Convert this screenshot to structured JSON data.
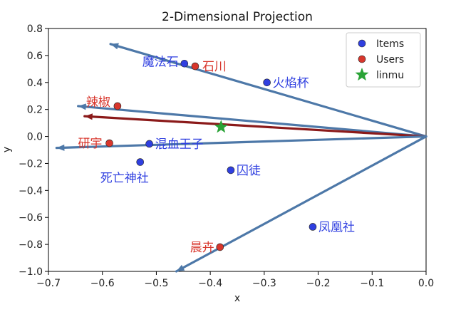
{
  "chart_data": {
    "type": "scatter",
    "title": "2-Dimensional Projection",
    "xlabel": "x",
    "ylabel": "y",
    "xlim": [
      -0.7,
      0.0
    ],
    "ylim": [
      -1.0,
      0.8
    ],
    "xticks": [
      "−0.7",
      "−0.6",
      "−0.5",
      "−0.4",
      "−0.3",
      "−0.2",
      "−0.1",
      "0.0"
    ],
    "yticks": [
      "−1.0",
      "−0.8",
      "−0.6",
      "−0.4",
      "−0.2",
      "0.0",
      "0.2",
      "0.4",
      "0.6",
      "0.8"
    ],
    "legend_position": "top-right",
    "colors": {
      "items": "#2f3fe0",
      "users": "#d8362c",
      "target": "#2aa336",
      "arrow_blue": "#4d78a8",
      "arrow_red": "#8b1a1a"
    },
    "series": [
      {
        "name": "Items",
        "marker": "circle",
        "points": [
          {
            "label": "魔法石",
            "x": -0.448,
            "y": 0.54
          },
          {
            "label": "火焰杯",
            "x": -0.295,
            "y": 0.4
          },
          {
            "label": "混血王子",
            "x": -0.513,
            "y": -0.055
          },
          {
            "label": "死亡神社",
            "x": -0.53,
            "y": -0.19
          },
          {
            "label": "囚徒",
            "x": -0.362,
            "y": -0.25
          },
          {
            "label": "凤凰社",
            "x": -0.21,
            "y": -0.67
          }
        ]
      },
      {
        "name": "Users",
        "marker": "circle",
        "points": [
          {
            "label": "石川",
            "x": -0.428,
            "y": 0.52
          },
          {
            "label": "辣椒",
            "x": -0.572,
            "y": 0.225
          },
          {
            "label": "研宇",
            "x": -0.587,
            "y": -0.05
          },
          {
            "label": "晨卉",
            "x": -0.382,
            "y": -0.82
          }
        ]
      },
      {
        "name": "linmu",
        "marker": "star",
        "points": [
          {
            "label": "",
            "x": -0.38,
            "y": 0.07
          }
        ]
      }
    ],
    "arrows": [
      {
        "color": "arrow_blue",
        "x0": 0.0,
        "y0": 0.0,
        "x1": -0.585,
        "y1": 0.685
      },
      {
        "color": "arrow_blue",
        "x0": 0.0,
        "y0": 0.0,
        "x1": -0.645,
        "y1": 0.225
      },
      {
        "color": "arrow_red",
        "x0": 0.0,
        "y0": 0.0,
        "x1": -0.633,
        "y1": 0.15
      },
      {
        "color": "arrow_blue",
        "x0": 0.0,
        "y0": 0.0,
        "x1": -0.685,
        "y1": -0.085
      },
      {
        "color": "arrow_blue",
        "x0": 0.0,
        "y0": 0.0,
        "x1": -0.463,
        "y1": -1.0
      }
    ]
  }
}
